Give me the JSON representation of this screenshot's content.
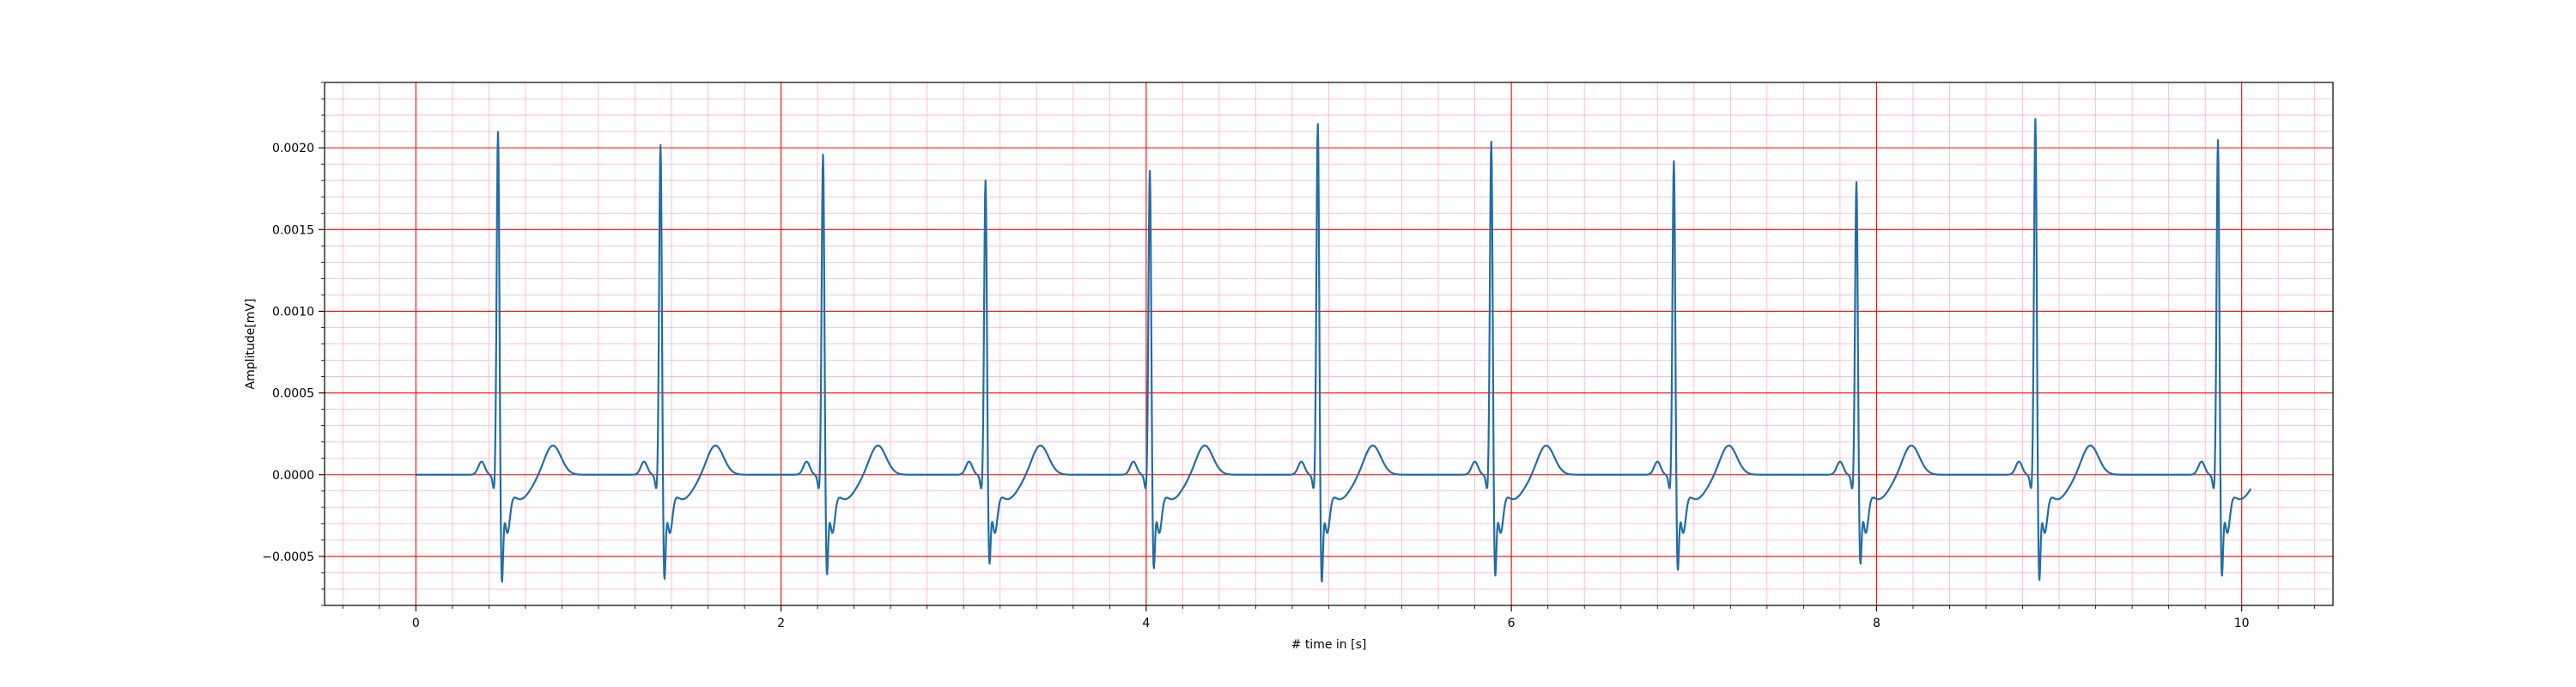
{
  "chart_data": {
    "type": "line",
    "title": "",
    "xlabel": "# time in [s]",
    "ylabel": "Amplitude[mV]",
    "xlim": [
      -0.5,
      10.5
    ],
    "ylim": [
      -0.0008,
      0.0024
    ],
    "x_ticks": [
      0,
      2,
      4,
      6,
      8,
      10
    ],
    "x_tick_labels": [
      "0",
      "2",
      "4",
      "6",
      "8",
      "10"
    ],
    "y_ticks": [
      -0.0005,
      0.0,
      0.0005,
      0.001,
      0.0015,
      0.002
    ],
    "y_tick_labels": [
      "−0.0005",
      "0.0000",
      "0.0005",
      "0.0010",
      "0.0015",
      "0.0020"
    ],
    "grid": {
      "major": true,
      "minor": true,
      "major_color": "#ff0000",
      "minor_color": "#ffb0c8"
    },
    "legend": "none",
    "series": [
      {
        "color": "#1f6ea8",
        "x_start": 0.0,
        "x_end": 10.05,
        "beats": [
          {
            "t": 0.45,
            "r": 0.00214,
            "s": -0.00062
          },
          {
            "t": 1.34,
            "r": 0.00206,
            "s": -0.0006
          },
          {
            "t": 2.23,
            "r": 0.002,
            "s": -0.00057
          },
          {
            "t": 3.12,
            "r": 0.00184,
            "s": -0.0005
          },
          {
            "t": 4.02,
            "r": 0.0019,
            "s": -0.00053
          },
          {
            "t": 4.94,
            "r": 0.00219,
            "s": -0.00062
          },
          {
            "t": 5.89,
            "r": 0.00208,
            "s": -0.00058
          },
          {
            "t": 6.89,
            "r": 0.00196,
            "s": -0.00054
          },
          {
            "t": 7.89,
            "r": 0.00183,
            "s": -0.0005
          },
          {
            "t": 8.87,
            "r": 0.00222,
            "s": -0.00061
          },
          {
            "t": 9.87,
            "r": 0.00209,
            "s": -0.00058
          }
        ],
        "waveform_offsets_s": {
          "p": -0.09,
          "q": -0.02,
          "s": 0.02,
          "notch": 0.05,
          "st": 0.12,
          "t_wave": 0.3
        },
        "waveform_levels_mv": {
          "p": 8e-05,
          "q": -0.0001,
          "notch": -0.00028,
          "st": -0.00015,
          "t_wave": 0.00018
        }
      }
    ]
  }
}
